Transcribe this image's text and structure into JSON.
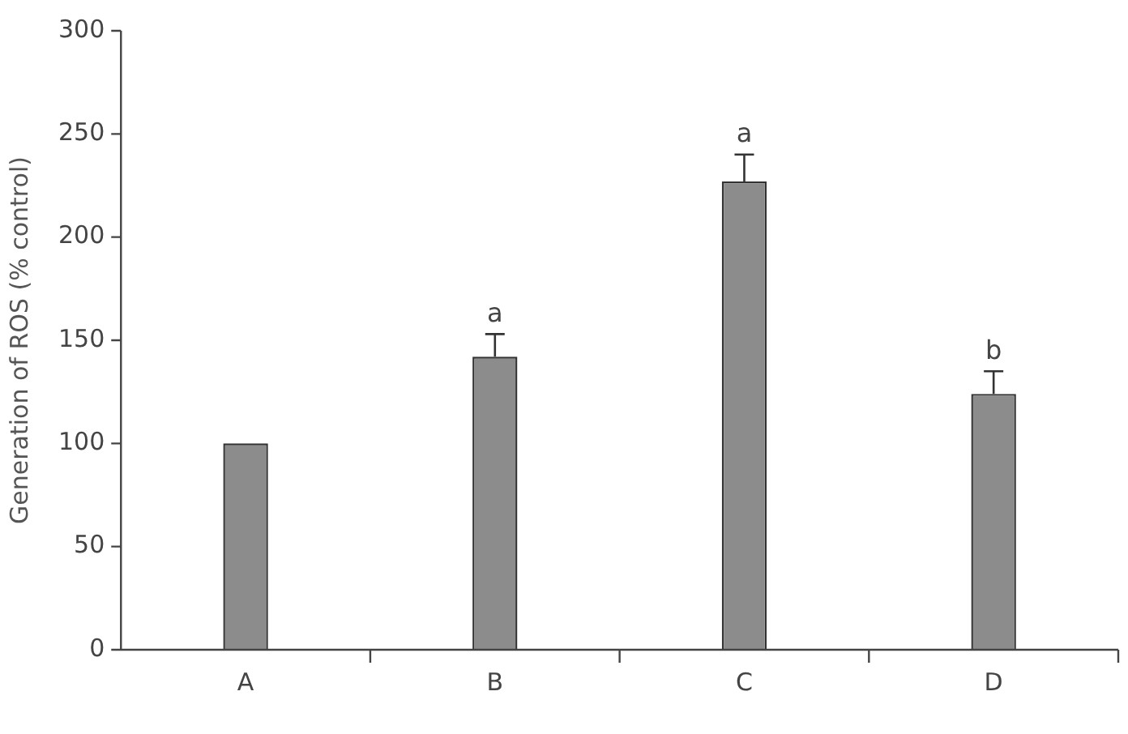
{
  "chart_data": {
    "type": "bar",
    "ylabel": "Generation of ROS (% control)",
    "categories": [
      "A",
      "B",
      "C",
      "D"
    ],
    "values": [
      100,
      142,
      227,
      124
    ],
    "color": "#8c8c8c",
    "errors": [
      null,
      [
        142,
        153
      ],
      [
        227,
        240
      ],
      [
        124,
        135
      ]
    ],
    "ylim": [
      0,
      300
    ],
    "yticks": [
      0,
      50,
      100,
      150,
      200,
      250,
      300
    ],
    "grid": false,
    "legend": false,
    "annotations": [
      {
        "text": "a",
        "x": "B",
        "y": 153
      },
      {
        "text": "a",
        "x": "C",
        "y": 240
      },
      {
        "text": "b",
        "x": "D",
        "y": 135
      }
    ]
  }
}
